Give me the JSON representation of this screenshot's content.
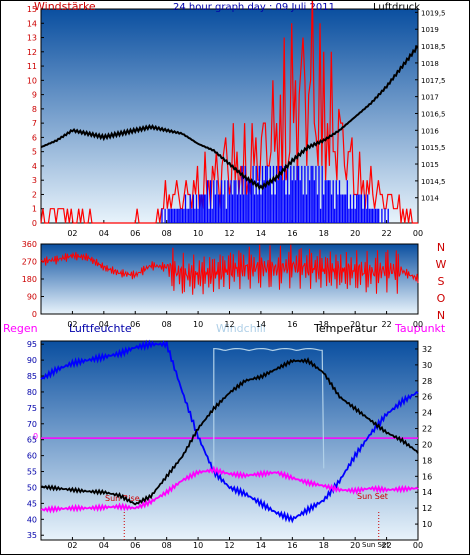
{
  "colors": {
    "windspeed": "#ff0000",
    "gust": "#0000ff",
    "pressure": "#000000",
    "direction": "#ff0000",
    "humidity": "#0000ff",
    "windchill": "#b0d0e8",
    "temperature": "#000000",
    "dewpoint": "#ff00ff",
    "rain": "#ff00ff",
    "sunline": "#cc0000",
    "bg_top": "#0a4fa0",
    "bg_bottom": "#e8f3fb"
  },
  "chart_data": [
    {
      "type": "line",
      "title": "24 hour graph day : 09 Juli 2011",
      "ylabel": "Windstärke",
      "y2label": "Luftdruck",
      "ylim": [
        0,
        15
      ],
      "y2lim": [
        1013.25,
        1019.6
      ],
      "yticks": [
        "0",
        "1",
        "2",
        "3",
        "4",
        "5",
        "6",
        "7",
        "8",
        "9",
        "10",
        "11",
        "12",
        "13",
        "14",
        "15"
      ],
      "y2ticks": [
        "1014",
        "1014,5",
        "1015",
        "1015,5",
        "1016",
        "1016,5",
        "1017",
        "1017,5",
        "1018",
        "1018,5",
        "1019",
        "1019,5"
      ],
      "xticks": [
        "02",
        "04",
        "06",
        "08",
        "10",
        "12",
        "14",
        "16",
        "18",
        "20",
        "22",
        "00"
      ],
      "series": [
        {
          "name": "Windstärke",
          "x": [
            0,
            1,
            2,
            3,
            4,
            5,
            6,
            7,
            8,
            9,
            10,
            11,
            12,
            13,
            14,
            15,
            16,
            17,
            18,
            19,
            20,
            21,
            22,
            23,
            24
          ],
          "values": [
            0.5,
            1,
            0.5,
            0.5,
            0,
            0,
            0.5,
            0,
            2,
            2,
            3,
            4,
            5,
            5,
            6,
            8,
            10,
            12,
            10,
            7,
            4,
            3,
            2,
            1,
            0
          ]
        },
        {
          "name": "Böen",
          "x": [
            0,
            1,
            2,
            3,
            4,
            5,
            6,
            7,
            8,
            9,
            10,
            11,
            12,
            13,
            14,
            15,
            16,
            17,
            18,
            19,
            20,
            21,
            22,
            23,
            24
          ],
          "values": [
            0,
            0,
            0,
            0,
            0,
            0,
            0,
            0,
            0.5,
            1,
            1.5,
            2,
            2,
            2.5,
            3,
            3,
            3,
            3,
            2.5,
            2,
            1.5,
            1,
            0.5,
            0,
            0
          ]
        },
        {
          "name": "Luftdruck",
          "x": [
            0,
            1,
            2,
            3,
            4,
            5,
            6,
            7,
            8,
            9,
            10,
            11,
            12,
            13,
            14,
            15,
            16,
            17,
            18,
            19,
            20,
            21,
            22,
            23,
            24
          ],
          "values": [
            1015.5,
            1015.7,
            1016.0,
            1015.9,
            1015.8,
            1015.9,
            1016.0,
            1016.1,
            1016.0,
            1015.9,
            1015.6,
            1015.4,
            1015.0,
            1014.6,
            1014.3,
            1014.6,
            1015.1,
            1015.5,
            1015.7,
            1016.0,
            1016.4,
            1016.8,
            1017.3,
            1017.9,
            1018.5
          ]
        }
      ]
    },
    {
      "type": "line",
      "ylabel": "Windrichtung",
      "ylim": [
        0,
        360
      ],
      "yticks": [
        "0",
        "90",
        "180",
        "270",
        "360"
      ],
      "compass": [
        "N",
        "W",
        "S",
        "O",
        "N"
      ],
      "xticks": [
        "02",
        "04",
        "06",
        "08",
        "10",
        "12",
        "14",
        "16",
        "18",
        "20",
        "22",
        "00"
      ],
      "series": [
        {
          "name": "Windrichtung",
          "x": [
            0,
            1,
            2,
            3,
            4,
            5,
            6,
            7,
            8,
            9,
            10,
            11,
            12,
            13,
            14,
            15,
            16,
            17,
            18,
            19,
            20,
            21,
            22,
            23,
            24
          ],
          "values": [
            270,
            280,
            300,
            290,
            240,
            210,
            200,
            250,
            240,
            200,
            200,
            210,
            230,
            240,
            240,
            230,
            250,
            240,
            230,
            220,
            220,
            210,
            230,
            220,
            180
          ]
        }
      ]
    },
    {
      "type": "line",
      "ylabel": "Luftfeuchte",
      "y2label": "Temperatur",
      "y0label": "Regen",
      "y3label": "Taupunkt",
      "windchill_label": "Windchill",
      "ylim": [
        33.5,
        96
      ],
      "y2lim": [
        8,
        33
      ],
      "yticks": [
        "35",
        "40",
        "45",
        "50",
        "55",
        "60",
        "65",
        "70",
        "75",
        "80",
        "85",
        "90",
        "95"
      ],
      "y2ticks": [
        "10",
        "12",
        "14",
        "16",
        "18",
        "20",
        "22",
        "24",
        "26",
        "28",
        "30",
        "32"
      ],
      "rain_label": "0",
      "sunrise_label": "Sun Rise",
      "sunset_label": "Sun Set",
      "sunset_tick": "Sun Set",
      "sunrise_hour": 5.3,
      "sunset_hour": 21.5,
      "xticks": [
        "02",
        "04",
        "06",
        "08",
        "10",
        "12",
        "14",
        "16",
        "18",
        "20",
        "22",
        "00"
      ],
      "series": [
        {
          "name": "Luftfeuchte",
          "x": [
            0,
            1,
            2,
            3,
            4,
            5,
            6,
            7,
            8,
            9,
            10,
            11,
            12,
            13,
            14,
            15,
            16,
            17,
            18,
            19,
            20,
            21,
            22,
            23,
            24
          ],
          "values": [
            84,
            87,
            89,
            90,
            91,
            92,
            94,
            95,
            95,
            80,
            66,
            55,
            50,
            48,
            45,
            42,
            40,
            43,
            46,
            52,
            60,
            67,
            73,
            77,
            80
          ]
        },
        {
          "name": "Temperatur",
          "x": [
            0,
            1,
            2,
            3,
            4,
            5,
            6,
            7,
            8,
            9,
            10,
            11,
            12,
            13,
            14,
            15,
            16,
            17,
            18,
            19,
            20,
            21,
            22,
            23,
            24
          ],
          "values": [
            14.7,
            14.5,
            14.3,
            14.1,
            14.0,
            13.6,
            12.5,
            13.5,
            16,
            18.5,
            22,
            24.5,
            26.5,
            28,
            28.5,
            29.5,
            30.5,
            30.5,
            29,
            26,
            24.5,
            23,
            21.5,
            20.5,
            19
          ]
        },
        {
          "name": "Windchill",
          "x": [
            11,
            12,
            13,
            14,
            15,
            16,
            17,
            18
          ],
          "values": [
            31.8,
            31.8,
            31.8,
            31.8,
            31.8,
            31.8,
            31.8,
            31.8
          ]
        },
        {
          "name": "Taupunkt",
          "x": [
            0,
            1,
            2,
            3,
            4,
            5,
            6,
            7,
            8,
            9,
            10,
            11,
            12,
            13,
            14,
            15,
            16,
            17,
            18,
            19,
            20,
            21,
            22,
            23,
            24
          ],
          "values": [
            11.8,
            11.9,
            12.0,
            12.0,
            12.1,
            12.2,
            12.0,
            12.8,
            14.0,
            15.5,
            16.5,
            16.8,
            16.3,
            16.1,
            16.3,
            16.5,
            15.8,
            15.2,
            14.8,
            14.3,
            14.2,
            14.5,
            14.3,
            14.4,
            14.5
          ]
        }
      ]
    }
  ]
}
